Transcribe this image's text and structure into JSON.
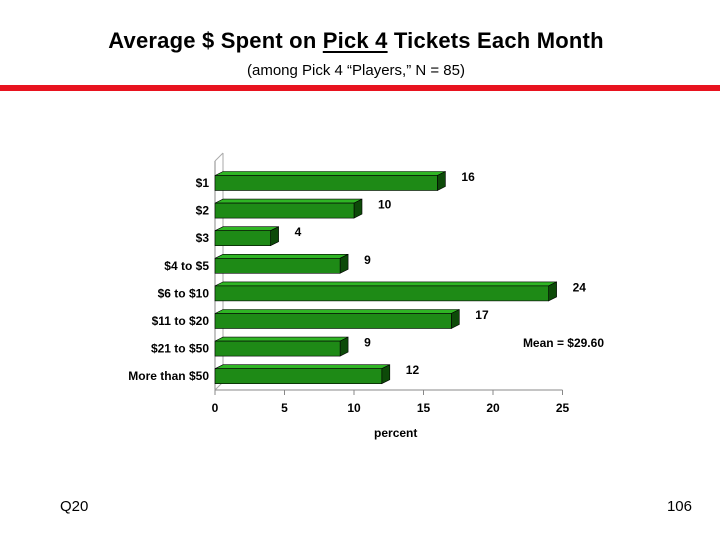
{
  "title": {
    "pre": "Average $ Spent on ",
    "underlined": "Pick 4",
    "post": " Tickets Each Month"
  },
  "subtitle": "(among Pick 4 “Players,” N = 85)",
  "slide_label": "Q20",
  "page_number": "106",
  "colors": {
    "bar_front": "#1e8a16",
    "bar_top": "#2fb524",
    "bar_side": "#0d4a09",
    "accent_line": "#e8131f"
  },
  "chart_data": {
    "type": "bar",
    "orientation": "horizontal",
    "categories": [
      "$1",
      "$2",
      "$3",
      "$4 to $5",
      "$6 to $10",
      "$11 to $20",
      "$21 to $50",
      "More than $50"
    ],
    "values": [
      16,
      10,
      4,
      9,
      24,
      17,
      9,
      12
    ],
    "xlabel": "percent",
    "xlim": [
      0,
      25
    ],
    "xticks": [
      0,
      5,
      10,
      15,
      20,
      25
    ],
    "annotation": "Mean = $29.60"
  }
}
